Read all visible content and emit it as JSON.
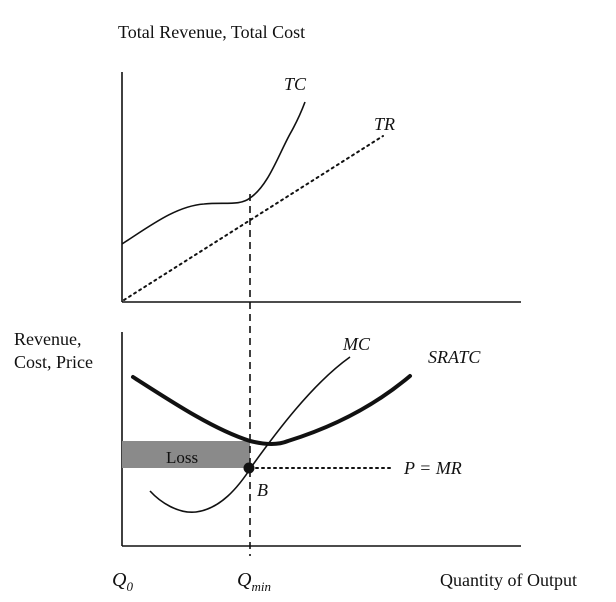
{
  "top_panel": {
    "title": "Total Revenue, Total Cost",
    "curves": {
      "tc_label": "TC",
      "tr_label": "TR"
    }
  },
  "bottom_panel": {
    "ylabel_line1": "Revenue,",
    "ylabel_line2": "Cost, Price",
    "curves": {
      "mc_label": "MC",
      "sratc_label": "SRATC",
      "price_label": "P = MR"
    },
    "loss_label": "Loss",
    "point_label": "B"
  },
  "x_axis": {
    "origin_label_main": "Q",
    "origin_label_sub": "0",
    "qmin_label_main": "Q",
    "qmin_label_sub": "min",
    "xlabel": "Quantity of Output"
  },
  "colors": {
    "ink": "#111111",
    "loss_fill": "#8a8a8a"
  }
}
